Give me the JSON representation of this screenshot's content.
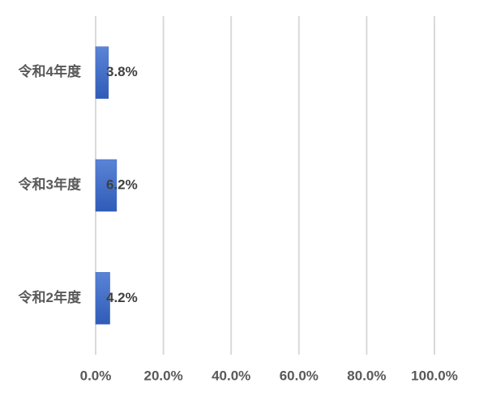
{
  "chart_data": {
    "type": "bar",
    "orientation": "horizontal",
    "categories": [
      "令和4年度",
      "令和3年度",
      "令和2年度"
    ],
    "values": [
      3.8,
      6.2,
      4.2
    ],
    "value_labels": [
      "3.8%",
      "6.2%",
      "4.2%"
    ],
    "color": "#3a66c4",
    "xlim": [
      0,
      100
    ],
    "xticks": [
      {
        "value": 0,
        "label": "0.0%"
      },
      {
        "value": 20,
        "label": "20.0%"
      },
      {
        "value": 40,
        "label": "40.0%"
      },
      {
        "value": 60,
        "label": "60.0%"
      },
      {
        "value": 80,
        "label": "80.0%"
      },
      {
        "value": 100,
        "label": "100.0%"
      }
    ],
    "grid": true
  }
}
